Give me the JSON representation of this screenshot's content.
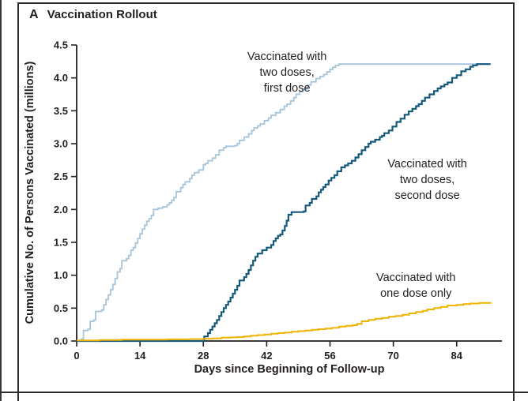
{
  "panel": {
    "label": "A",
    "title": "Vaccination Rollout"
  },
  "colors": {
    "axis": "#231f20",
    "first_dose": "#a6c4da",
    "second_dose": "#14587a",
    "one_dose": "#f0b400",
    "background": "#ffffff"
  },
  "chart_data": {
    "type": "line",
    "style": "step-after",
    "title": "Vaccination Rollout",
    "xlabel": "Days since Beginning of Follow-up",
    "ylabel": "Cumulative No. of Persons Vaccinated (millions)",
    "xlim": [
      0,
      94
    ],
    "ylim": [
      0,
      4.5
    ],
    "xticks": [
      0,
      14,
      28,
      42,
      56,
      70,
      84
    ],
    "yticks": [
      "0.0",
      "0.5",
      "1.0",
      "1.5",
      "2.0",
      "2.5",
      "3.0",
      "3.5",
      "4.0",
      "4.5"
    ],
    "grid": false,
    "legend_position": "none (direct line annotations)",
    "series": [
      {
        "id": "first-dose",
        "name": "Vaccinated with two doses, first dose",
        "color": "#a6c4da",
        "line_width": 1.8,
        "points": [
          [
            0,
            0
          ],
          [
            1,
            0.03
          ],
          [
            1.5,
            0.16
          ],
          [
            2.5,
            0.18
          ],
          [
            3,
            0.3
          ],
          [
            3.8,
            0.32
          ],
          [
            4.2,
            0.45
          ],
          [
            5.5,
            0.47
          ],
          [
            6,
            0.55
          ],
          [
            6.5,
            0.63
          ],
          [
            7,
            0.7
          ],
          [
            7.5,
            0.78
          ],
          [
            8,
            0.86
          ],
          [
            8.5,
            0.95
          ],
          [
            9,
            1.05
          ],
          [
            9.6,
            1.1
          ],
          [
            10,
            1.22
          ],
          [
            11,
            1.25
          ],
          [
            11.5,
            1.3
          ],
          [
            12,
            1.38
          ],
          [
            12.5,
            1.42
          ],
          [
            13,
            1.49
          ],
          [
            13.5,
            1.56
          ],
          [
            14,
            1.63
          ],
          [
            14.5,
            1.7
          ],
          [
            15,
            1.76
          ],
          [
            15.5,
            1.82
          ],
          [
            16,
            1.86
          ],
          [
            16.5,
            1.91
          ],
          [
            17,
            2.0
          ],
          [
            18,
            2.02
          ],
          [
            19,
            2.04
          ],
          [
            20,
            2.07
          ],
          [
            20.5,
            2.1
          ],
          [
            21,
            2.14
          ],
          [
            21.5,
            2.18
          ],
          [
            22,
            2.27
          ],
          [
            23,
            2.33
          ],
          [
            23.5,
            2.38
          ],
          [
            24,
            2.42
          ],
          [
            25,
            2.47
          ],
          [
            25.5,
            2.52
          ],
          [
            26,
            2.56
          ],
          [
            27,
            2.6
          ],
          [
            28,
            2.68
          ],
          [
            28.5,
            2.7
          ],
          [
            29,
            2.74
          ],
          [
            30,
            2.78
          ],
          [
            30.7,
            2.83
          ],
          [
            31.5,
            2.9
          ],
          [
            32.5,
            2.94
          ],
          [
            33,
            2.96
          ],
          [
            35,
            2.97
          ],
          [
            35.5,
            3.0
          ],
          [
            36,
            3.05
          ],
          [
            37,
            3.1
          ],
          [
            38,
            3.15
          ],
          [
            38.7,
            3.2
          ],
          [
            39.2,
            3.24
          ],
          [
            40,
            3.27
          ],
          [
            40.6,
            3.3
          ],
          [
            41.5,
            3.35
          ],
          [
            42.4,
            3.39
          ],
          [
            43,
            3.43
          ],
          [
            44,
            3.47
          ],
          [
            45,
            3.52
          ],
          [
            45.9,
            3.57
          ],
          [
            46.5,
            3.6
          ],
          [
            47.3,
            3.65
          ],
          [
            48,
            3.7
          ],
          [
            48.5,
            3.75
          ],
          [
            49.3,
            3.79
          ],
          [
            50,
            3.83
          ],
          [
            51,
            3.89
          ],
          [
            51.8,
            3.94
          ],
          [
            52.9,
            3.99
          ],
          [
            53.8,
            4.02
          ],
          [
            54.6,
            4.05
          ],
          [
            55.3,
            4.09
          ],
          [
            56,
            4.13
          ],
          [
            56.6,
            4.16
          ],
          [
            57.2,
            4.19
          ],
          [
            58,
            4.21
          ],
          [
            91.5,
            4.21
          ]
        ]
      },
      {
        "id": "second-dose",
        "name": "Vaccinated with two doses, second dose",
        "color": "#14587a",
        "line_width": 2.2,
        "points": [
          [
            0,
            0
          ],
          [
            27.8,
            0
          ],
          [
            28.2,
            0.07
          ],
          [
            29,
            0.12
          ],
          [
            29.5,
            0.17
          ],
          [
            30,
            0.22
          ],
          [
            30.5,
            0.27
          ],
          [
            31,
            0.32
          ],
          [
            31.5,
            0.38
          ],
          [
            32,
            0.44
          ],
          [
            32.5,
            0.5
          ],
          [
            33,
            0.55
          ],
          [
            33.5,
            0.6
          ],
          [
            34,
            0.66
          ],
          [
            34.5,
            0.72
          ],
          [
            35,
            0.78
          ],
          [
            35.5,
            0.84
          ],
          [
            36,
            0.92
          ],
          [
            37,
            0.97
          ],
          [
            37.5,
            1.02
          ],
          [
            38,
            1.08
          ],
          [
            38.5,
            1.15
          ],
          [
            39,
            1.22
          ],
          [
            39.5,
            1.28
          ],
          [
            40,
            1.33
          ],
          [
            41,
            1.38
          ],
          [
            42,
            1.42
          ],
          [
            43,
            1.46
          ],
          [
            43.5,
            1.52
          ],
          [
            44,
            1.56
          ],
          [
            44.5,
            1.6
          ],
          [
            45,
            1.62
          ],
          [
            45.5,
            1.68
          ],
          [
            46,
            1.75
          ],
          [
            46.4,
            1.83
          ],
          [
            46.8,
            1.92
          ],
          [
            47.5,
            1.96
          ],
          [
            50.2,
            1.97
          ],
          [
            50.6,
            2.06
          ],
          [
            51.5,
            2.1
          ],
          [
            52,
            2.16
          ],
          [
            53,
            2.2
          ],
          [
            53.5,
            2.26
          ],
          [
            54,
            2.3
          ],
          [
            54.5,
            2.34
          ],
          [
            55,
            2.38
          ],
          [
            55.7,
            2.44
          ],
          [
            56.3,
            2.48
          ],
          [
            57,
            2.52
          ],
          [
            57.6,
            2.58
          ],
          [
            58.5,
            2.64
          ],
          [
            59.3,
            2.67
          ],
          [
            60,
            2.7
          ],
          [
            60.8,
            2.74
          ],
          [
            61.6,
            2.79
          ],
          [
            62.3,
            2.84
          ],
          [
            63,
            2.9
          ],
          [
            63.8,
            2.95
          ],
          [
            64.5,
            3.0
          ],
          [
            65,
            3.03
          ],
          [
            66,
            3.06
          ],
          [
            67,
            3.1
          ],
          [
            67.5,
            3.12
          ],
          [
            68,
            3.16
          ],
          [
            69,
            3.2
          ],
          [
            69.8,
            3.26
          ],
          [
            70.7,
            3.33
          ],
          [
            71.6,
            3.38
          ],
          [
            72.5,
            3.44
          ],
          [
            73.4,
            3.49
          ],
          [
            74.2,
            3.53
          ],
          [
            75,
            3.57
          ],
          [
            75.6,
            3.6
          ],
          [
            76.3,
            3.65
          ],
          [
            77,
            3.7
          ],
          [
            78,
            3.75
          ],
          [
            79,
            3.8
          ],
          [
            79.8,
            3.84
          ],
          [
            80.5,
            3.87
          ],
          [
            81.3,
            3.9
          ],
          [
            82,
            3.93
          ],
          [
            83,
            4.0
          ],
          [
            84,
            4.04
          ],
          [
            85,
            4.1
          ],
          [
            86,
            4.13
          ],
          [
            87,
            4.17
          ],
          [
            87.6,
            4.19
          ],
          [
            88.5,
            4.21
          ],
          [
            91.5,
            4.21
          ]
        ]
      },
      {
        "id": "one-dose",
        "name": "Vaccinated with one dose only",
        "color": "#f0b400",
        "line_width": 2,
        "points": [
          [
            0,
            0.01
          ],
          [
            5,
            0.015
          ],
          [
            10,
            0.02
          ],
          [
            15,
            0.02
          ],
          [
            20,
            0.025
          ],
          [
            25,
            0.03
          ],
          [
            28,
            0.035
          ],
          [
            30,
            0.04
          ],
          [
            32,
            0.05
          ],
          [
            34,
            0.055
          ],
          [
            35.5,
            0.06
          ],
          [
            37,
            0.07
          ],
          [
            38.5,
            0.08
          ],
          [
            40,
            0.09
          ],
          [
            41.5,
            0.1
          ],
          [
            43,
            0.11
          ],
          [
            44.5,
            0.12
          ],
          [
            46,
            0.13
          ],
          [
            47.5,
            0.14
          ],
          [
            49,
            0.15
          ],
          [
            50.5,
            0.16
          ],
          [
            52,
            0.17
          ],
          [
            53.5,
            0.18
          ],
          [
            55,
            0.19
          ],
          [
            56.4,
            0.2
          ],
          [
            58,
            0.22
          ],
          [
            59.5,
            0.23
          ],
          [
            61,
            0.24
          ],
          [
            62,
            0.26
          ],
          [
            63,
            0.3
          ],
          [
            64.5,
            0.32
          ],
          [
            66,
            0.34
          ],
          [
            67.5,
            0.35
          ],
          [
            69,
            0.37
          ],
          [
            70.5,
            0.38
          ],
          [
            72,
            0.4
          ],
          [
            73.5,
            0.42
          ],
          [
            75,
            0.44
          ],
          [
            76.5,
            0.46
          ],
          [
            77.5,
            0.48
          ],
          [
            79,
            0.5
          ],
          [
            80.5,
            0.52
          ],
          [
            82,
            0.54
          ],
          [
            84,
            0.55
          ],
          [
            85.5,
            0.56
          ],
          [
            87,
            0.57
          ],
          [
            89,
            0.58
          ],
          [
            91.5,
            0.59
          ]
        ]
      }
    ],
    "annotations": [
      {
        "text": "Vaccinated with\ntwo doses,\nfirst dose",
        "series": "first-dose",
        "x": 46.5,
        "y": 4.08
      },
      {
        "text": "Vaccinated with\ntwo doses,\nsecond dose",
        "series": "second-dose",
        "x": 77.5,
        "y": 2.45
      },
      {
        "text": "Vaccinated with\none dose only",
        "series": "one-dose",
        "x": 75,
        "y": 0.84
      }
    ]
  }
}
